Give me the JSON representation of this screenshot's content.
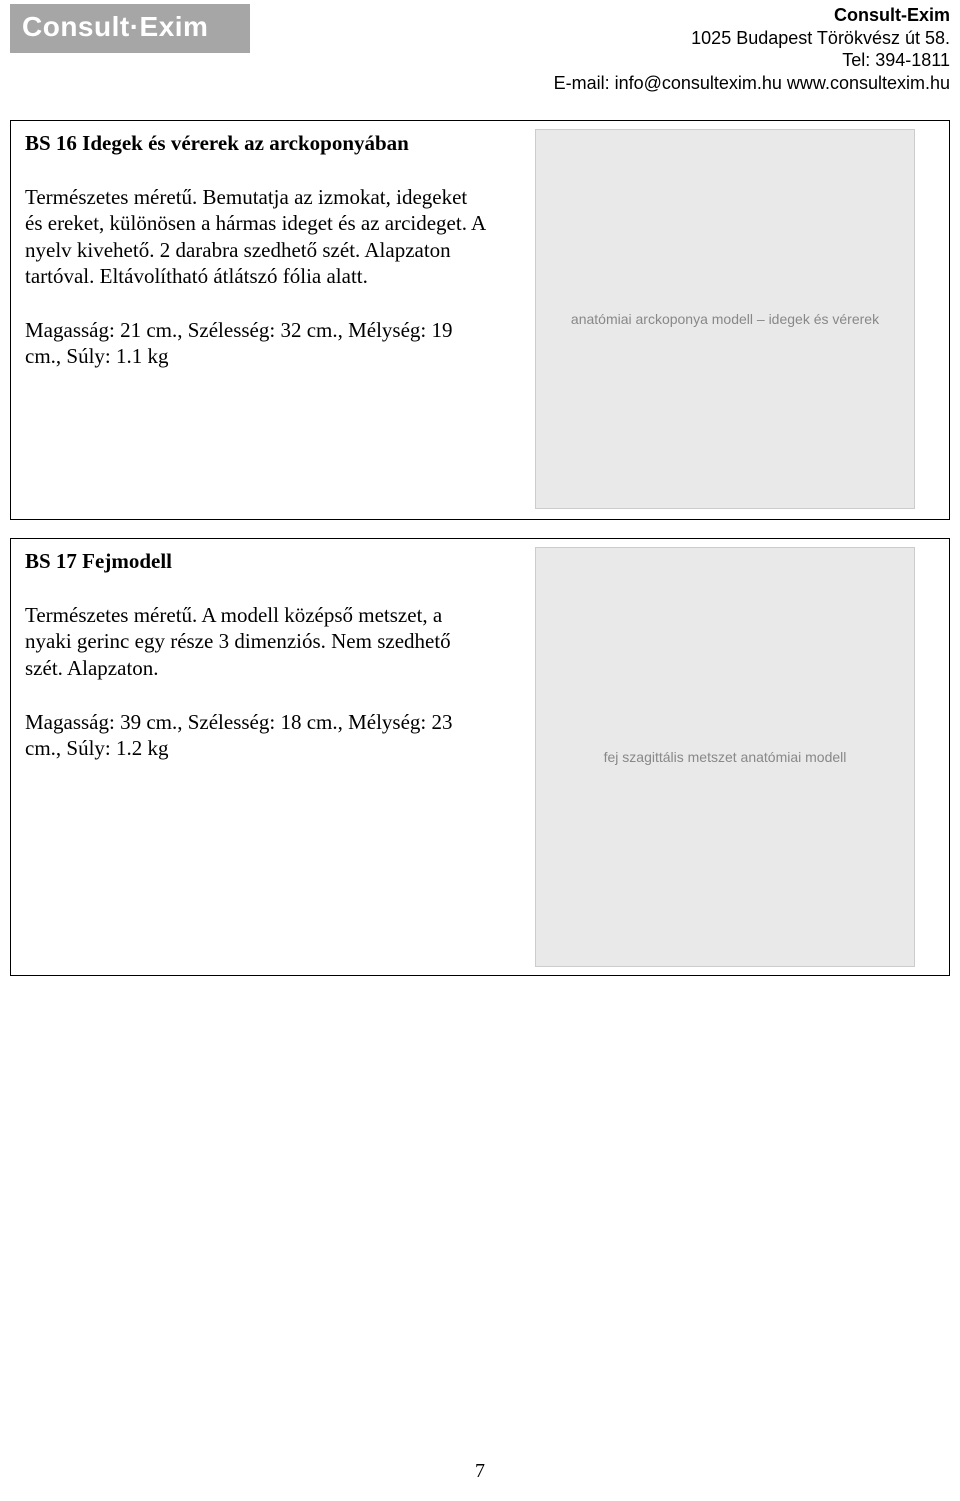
{
  "company": {
    "logo_text": "Consult·Exim",
    "name": "Consult-Exim",
    "address": "1025 Budapest Törökvész út 58.",
    "tel": "Tel: 394-1811",
    "email_line": "E-mail: info@consultexim.hu www.consultexim.hu"
  },
  "products": [
    {
      "title": "BS 16 Idegek és vérerek az arckoponyában",
      "description": "Természetes méretű. Bemutatja az izmokat, idegeket és ereket, különösen a hármas ideget és az arcideget. A nyelv kivehető. 2 darabra szedhető szét. Alapzaton tartóval. Eltávolítható átlátszó fólia alatt.",
      "dimensions": "Magasság: 21 cm., Szélesség: 32 cm., Mélység: 19 cm., Súly:  1.1 kg",
      "image_alt": "anatómiai arckoponya modell – idegek és vérerek"
    },
    {
      "title": "BS 17 Fejmodell",
      "description": "Természetes méretű. A modell középső metszet, a nyaki gerinc egy része 3 dimenziós. Nem szedhető szét. Alapzaton.",
      "dimensions": "Magasság: 39 cm., Szélesség: 18 cm., Mélység: 23 cm., Súly: 1.2 kg",
      "image_alt": "fej szagittális metszet anatómiai modell"
    }
  ],
  "page_number": "7"
}
